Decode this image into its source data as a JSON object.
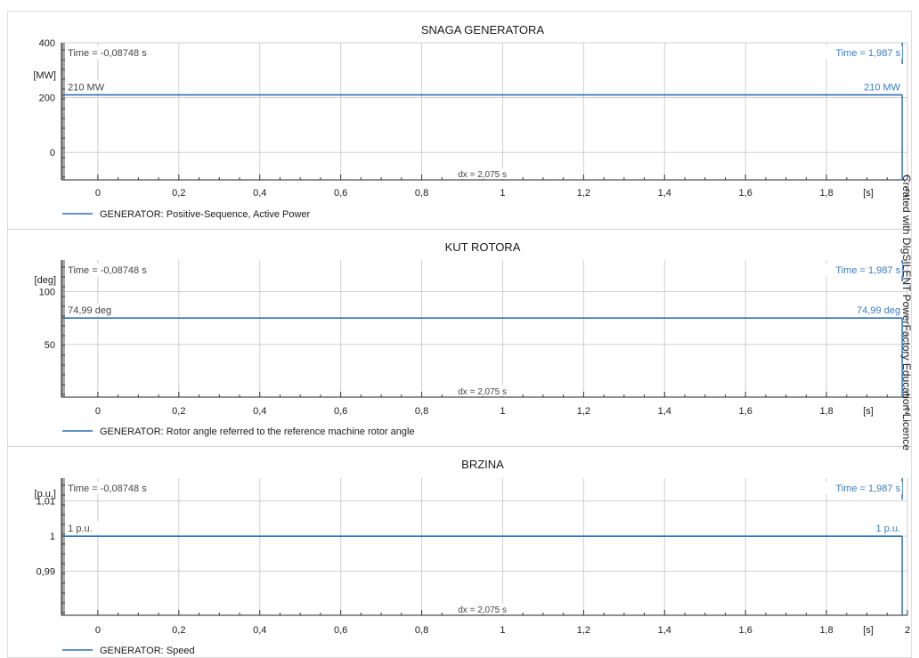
{
  "watermark": "Created with DIgSILENT PowerFactory Education Licence",
  "colors": {
    "series": "#2c6fb7",
    "cursor_text": "#3a7cc4",
    "text": "#1a1a1a",
    "grid": "#cfcfcf"
  },
  "chart_data": [
    {
      "type": "line",
      "title": "SNAGA GENERATORA",
      "ylabel": "[MW]",
      "xlabel": "[s]",
      "xlim": [
        -0.09,
        2.0
      ],
      "ylim": [
        -100,
        400
      ],
      "x_ticks": [
        0,
        0.2,
        0.4,
        0.6,
        0.8,
        1,
        1.2,
        1.4,
        1.6,
        1.8,
        2
      ],
      "x_tick_labels": [
        "0",
        "0,2",
        "0,4",
        "0,6",
        "0,8",
        "1",
        "1,2",
        "1,4",
        "1,6",
        "1,8",
        "2"
      ],
      "y_ticks": [
        0,
        200,
        400
      ],
      "y_tick_labels": [
        "0",
        "200",
        "400"
      ],
      "series": [
        {
          "name": "GENERATOR: Positive-Sequence, Active Power",
          "x": [
            -0.08748,
            1.987
          ],
          "y": [
            210,
            210
          ]
        }
      ],
      "cursors": [
        {
          "x": -0.08748,
          "label": "Time = -0,08748 s",
          "value_label": "210 MW"
        },
        {
          "x": 1.987,
          "label": "Time = 1,987 s",
          "value_label": "210 MW"
        }
      ],
      "dx_label": "dx = 2,075 s",
      "legend": "bottom-left"
    },
    {
      "type": "line",
      "title": "KUT ROTORA",
      "ylabel": "[deg]",
      "xlabel": "[s]",
      "xlim": [
        -0.09,
        2.0
      ],
      "ylim": [
        0,
        130
      ],
      "x_ticks": [
        0,
        0.2,
        0.4,
        0.6,
        0.8,
        1,
        1.2,
        1.4,
        1.6,
        1.8,
        2
      ],
      "x_tick_labels": [
        "0",
        "0,2",
        "0,4",
        "0,6",
        "0,8",
        "1",
        "1,2",
        "1,4",
        "1,6",
        "1,8",
        "2"
      ],
      "y_ticks": [
        50,
        100
      ],
      "y_tick_labels": [
        "50",
        "100"
      ],
      "series": [
        {
          "name": "GENERATOR: Rotor angle referred to the reference machine rotor angle",
          "x": [
            -0.08748,
            1.987
          ],
          "y": [
            74.99,
            74.99
          ]
        }
      ],
      "cursors": [
        {
          "x": -0.08748,
          "label": "Time = -0,08748 s",
          "value_label": "74,99 deg"
        },
        {
          "x": 1.987,
          "label": "Time = 1,987 s",
          "value_label": "74,99 deg"
        }
      ],
      "dx_label": "dx = 2,075 s",
      "legend": "bottom-left"
    },
    {
      "type": "line",
      "title": "BRZINA",
      "ylabel": "[p.u.]",
      "xlabel": "[s]",
      "xlim": [
        -0.09,
        2.0
      ],
      "ylim": [
        0.9775,
        1.0165
      ],
      "x_ticks": [
        0,
        0.2,
        0.4,
        0.6,
        0.8,
        1,
        1.2,
        1.4,
        1.6,
        1.8,
        2
      ],
      "x_tick_labels": [
        "0",
        "0,2",
        "0,4",
        "0,6",
        "0,8",
        "1",
        "1,2",
        "1,4",
        "1,6",
        "1,8",
        "2"
      ],
      "y_ticks": [
        0.99,
        1.0,
        1.01
      ],
      "y_tick_labels": [
        "0,99",
        "1",
        "1,01"
      ],
      "series": [
        {
          "name": "GENERATOR: Speed",
          "x": [
            -0.08748,
            1.987
          ],
          "y": [
            1.0,
            1.0
          ]
        }
      ],
      "cursors": [
        {
          "x": -0.08748,
          "label": "Time = -0,08748 s",
          "value_label": "1 p.u."
        },
        {
          "x": 1.987,
          "label": "Time = 1,987 s",
          "value_label": "1 p.u."
        }
      ],
      "dx_label": "dx = 2,075 s",
      "legend": "bottom-left"
    }
  ]
}
